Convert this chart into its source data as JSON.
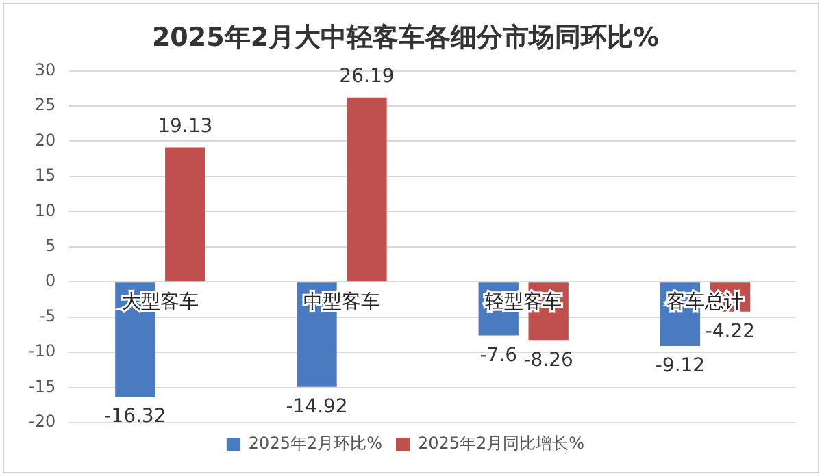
{
  "chart_data": {
    "type": "bar",
    "title": "2025年2月大中轻客车各细分市场同环比%",
    "categories": [
      "大型客车",
      "中型客车",
      "轻型客车",
      "客车总计"
    ],
    "series": [
      {
        "name": "2025年2月环比%",
        "color": "#4a7bc0",
        "values": [
          -16.32,
          -14.92,
          -7.6,
          -9.12
        ]
      },
      {
        "name": "2025年2月同比增长%",
        "color": "#c0504d",
        "values": [
          19.13,
          26.19,
          -8.26,
          -4.22
        ]
      }
    ],
    "ylim": [
      -20,
      30
    ],
    "yticks": [
      -20,
      -15,
      -10,
      -5,
      0,
      5,
      10,
      15,
      20,
      25,
      30
    ],
    "grid": "y",
    "legend": "bottom",
    "data_labels": true
  }
}
